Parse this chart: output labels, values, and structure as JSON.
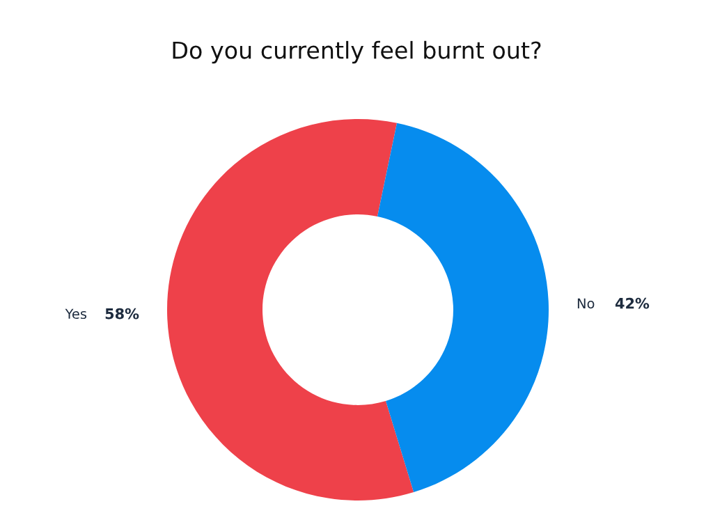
{
  "chart_data": {
    "type": "donut",
    "title": "Do you currently feel burnt out?",
    "categories": [
      "Yes",
      "No"
    ],
    "values": [
      58,
      42
    ],
    "colors": [
      "#ee414a",
      "#068cee"
    ],
    "value_labels": [
      "58%",
      "42%"
    ]
  }
}
